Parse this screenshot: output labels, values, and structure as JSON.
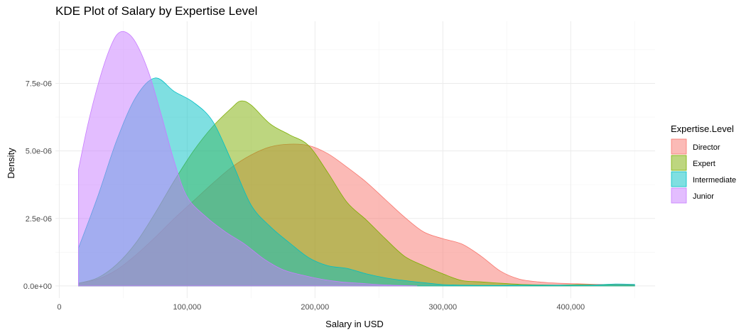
{
  "chart_data": {
    "type": "area",
    "subtype": "density",
    "title": "KDE Plot of Salary by Expertise Level",
    "xlabel": "Salary in USD",
    "ylabel": "Density",
    "xlim": [
      -3000,
      466000
    ],
    "ylim": [
      -4.5e-07,
      9.8e-06
    ],
    "x_ticks": [
      0,
      100000,
      200000,
      300000,
      400000
    ],
    "x_tick_labels": [
      "0",
      "100,000",
      "200,000",
      "300,000",
      "400,000"
    ],
    "y_ticks": [
      0,
      2.5e-06,
      5e-06,
      7.5e-06
    ],
    "y_tick_labels": [
      "0.0e+00",
      "2.5e-06",
      "5.0e-06",
      "7.5e-06"
    ],
    "grid": true,
    "legend": {
      "title": "Expertise.Level",
      "position": "right"
    },
    "fill_opacity": 0.5,
    "series": [
      {
        "name": "Director",
        "color": "#F8766D",
        "x": [
          15000,
          30000,
          45000,
          60000,
          75000,
          90000,
          105000,
          120000,
          135000,
          150000,
          165000,
          180000,
          195000,
          210000,
          225000,
          240000,
          255000,
          270000,
          285000,
          300000,
          315000,
          330000,
          345000,
          360000,
          375000,
          390000,
          405000,
          420000,
          435000,
          450000
        ],
        "y": [
          1e-07,
          2.5e-07,
          6e-07,
          1.15e-06,
          1.8e-06,
          2.5e-06,
          3.15e-06,
          3.8e-06,
          4.4e-06,
          4.85e-06,
          5.15e-06,
          5.25e-06,
          5.2e-06,
          4.9e-06,
          4.4e-06,
          3.85e-06,
          3.2e-06,
          2.55e-06,
          2e-06,
          1.75e-06,
          1.55e-06,
          1.1e-06,
          5.5e-07,
          2.5e-07,
          1.5e-07,
          1e-07,
          8e-08,
          6e-08,
          5e-08,
          4e-08
        ]
      },
      {
        "name": "Expert",
        "color": "#7CAE00",
        "x": [
          15000,
          30000,
          45000,
          60000,
          75000,
          90000,
          105000,
          120000,
          135000,
          142000,
          150000,
          165000,
          180000,
          195000,
          210000,
          225000,
          240000,
          255000,
          270000,
          285000,
          300000,
          315000,
          330000,
          345000,
          360000,
          375000,
          390000,
          405000,
          420000,
          435000,
          450000
        ],
        "y": [
          1e-07,
          3e-07,
          8e-07,
          1.6e-06,
          2.7e-06,
          3.9e-06,
          5e-06,
          5.9e-06,
          6.6e-06,
          6.85e-06,
          6.7e-06,
          6e-06,
          5.6e-06,
          5.2e-06,
          4.2e-06,
          3.1e-06,
          2.45e-06,
          1.75e-06,
          1.1e-06,
          7.5e-07,
          4.5e-07,
          2e-07,
          1.5e-07,
          1e-07,
          6e-08,
          4e-08,
          3e-08,
          5e-08,
          4e-08,
          3e-08,
          2e-08
        ]
      },
      {
        "name": "Intermediate",
        "color": "#00BFC4",
        "x": [
          15000,
          30000,
          45000,
          60000,
          75000,
          90000,
          105000,
          120000,
          135000,
          150000,
          165000,
          180000,
          195000,
          210000,
          225000,
          240000,
          255000,
          270000,
          285000,
          300000,
          315000,
          330000,
          345000,
          360000,
          375000,
          390000,
          405000,
          420000,
          435000,
          450000
        ],
        "y": [
          1.4e-06,
          3.3e-06,
          5.4e-06,
          7e-06,
          7.7e-06,
          7.2e-06,
          6.8e-06,
          6.1e-06,
          4.6e-06,
          3e-06,
          2.2e-06,
          1.6e-06,
          1.05e-06,
          7.5e-07,
          6.5e-07,
          4.5e-07,
          3e-07,
          2e-07,
          1.2e-07,
          5e-08,
          3e-08,
          2e-08,
          2e-08,
          3e-08,
          3e-08,
          3e-08,
          3e-08,
          4e-08,
          7e-08,
          6e-08
        ]
      },
      {
        "name": "Junior",
        "color": "#C77CFF",
        "x": [
          15000,
          22000,
          30000,
          38000,
          45000,
          52000,
          60000,
          70000,
          80000,
          90000,
          100000,
          115000,
          130000,
          145000,
          160000,
          175000,
          190000,
          205000,
          220000,
          235000,
          250000,
          265000,
          280000
        ],
        "y": [
          4.3e-06,
          5.9e-06,
          7.4e-06,
          8.6e-06,
          9.3e-06,
          9.4e-06,
          9e-06,
          7.9e-06,
          6.3e-06,
          4.6e-06,
          3.3e-06,
          2.55e-06,
          2e-06,
          1.55e-06,
          1e-06,
          6e-07,
          4e-07,
          2.5e-07,
          1.5e-07,
          1e-07,
          5e-08,
          2e-08,
          0.0
        ]
      }
    ]
  }
}
